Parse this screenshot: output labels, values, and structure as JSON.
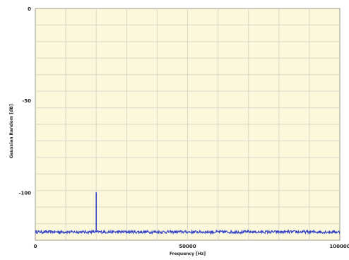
{
  "chart_data": {
    "type": "line",
    "xlabel": "Frequency [Hz]",
    "ylabel": "Gaussian Random [dB]",
    "xlim": [
      0,
      100000
    ],
    "ylim": [
      -126,
      0
    ],
    "x_ticks": [
      "0",
      "50000",
      "100000"
    ],
    "y_ticks": [
      "0",
      "-50",
      "-100"
    ],
    "x_tick_values": [
      0,
      50000,
      100000
    ],
    "y_tick_values": [
      0,
      -50,
      -100
    ],
    "grid": true,
    "colors": {
      "background": "#fbf8dc",
      "grid": "#d8d8c8",
      "series": "#2f3fc8"
    },
    "series": [
      {
        "noise_floor": -121.5,
        "peaks": [
          {
            "x": 20000,
            "y": -100
          }
        ]
      }
    ]
  }
}
